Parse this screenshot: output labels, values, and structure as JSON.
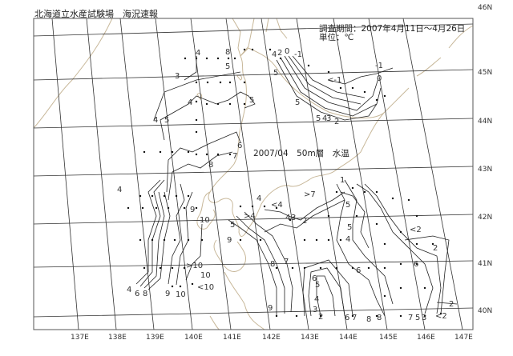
{
  "header": {
    "title": "北海道立水産試験場　海況速報",
    "period": "調査期間：2007年4月11日～4月26日",
    "unit": "単位：℃"
  },
  "map": {
    "caption": "2007/04　50m層　水温",
    "lat_labels": [
      "46N",
      "45N",
      "44N",
      "43N",
      "42N",
      "41N",
      "40N"
    ],
    "lon_labels": [
      "137E",
      "138E",
      "139E",
      "140E",
      "141E",
      "142E",
      "143E",
      "144E",
      "145E",
      "146E",
      "147E"
    ],
    "contour_labels": [
      "4",
      "8",
      "5",
      "3",
      "4",
      "5",
      "4",
      "5",
      "6",
      "7",
      "8",
      "4",
      "2",
      "0",
      "-1",
      "5",
      "5",
      "5",
      "4",
      "3",
      "2",
      "-1",
      "0",
      "<-1",
      "4",
      "9",
      "10",
      ">10",
      "10",
      "<10",
      "4",
      "6",
      "8",
      "9",
      "10",
      "4",
      "<4",
      ">4",
      "5",
      "9",
      "4",
      "3",
      "2",
      ">7",
      "1",
      "5",
      "5",
      "4",
      "<2",
      "2",
      "6",
      "6",
      "8",
      "7",
      "6",
      "5",
      "4",
      "3",
      "2",
      "9",
      "6",
      "7",
      "8",
      "8",
      "7",
      "5",
      "3",
      "<2",
      "2"
    ],
    "colors": {
      "grid": "#333333",
      "coast": "#c8b89a",
      "contour": "#222222",
      "station": "#111111"
    }
  }
}
